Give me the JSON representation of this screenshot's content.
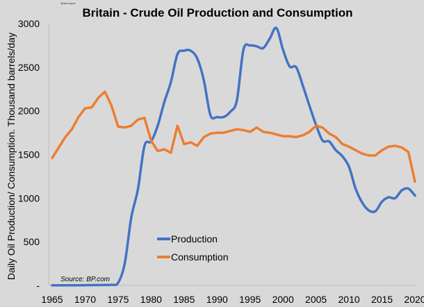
{
  "watermark": "@ideorogue",
  "chart_data": {
    "type": "line",
    "title": "Britain - Crude Oil Production and Consumption",
    "xlabel": "",
    "ylabel": "Daily Oil Production/ Consumption. Thousand barrels/day",
    "source": "Source: BP.com",
    "xlim": [
      1965,
      2020
    ],
    "ylim": [
      0,
      3000
    ],
    "x_ticks": [
      "1965",
      "1970",
      "1975",
      "1980",
      "1985",
      "1990",
      "1995",
      "2000",
      "2005",
      "2010",
      "2015",
      "2020"
    ],
    "y_ticks": [
      "-",
      "500",
      "1000",
      "1500",
      "2000",
      "2500",
      "3000"
    ],
    "grid": false,
    "legend_position": "bottom-center",
    "x": [
      1965,
      1966,
      1967,
      1968,
      1969,
      1970,
      1971,
      1972,
      1973,
      1974,
      1975,
      1976,
      1977,
      1978,
      1979,
      1980,
      1981,
      1982,
      1983,
      1984,
      1985,
      1986,
      1987,
      1988,
      1989,
      1990,
      1991,
      1992,
      1993,
      1994,
      1995,
      1996,
      1997,
      1998,
      1999,
      2000,
      2001,
      2002,
      2003,
      2004,
      2005,
      2006,
      2007,
      2008,
      2009,
      2010,
      2011,
      2012,
      2013,
      2014,
      2015,
      2016,
      2017,
      2018,
      2019,
      2020
    ],
    "series": [
      {
        "name": "Production",
        "color": "#4472c4",
        "smooth": true,
        "values": [
          2,
          2,
          2,
          2,
          2,
          3,
          4,
          5,
          6,
          8,
          30,
          250,
          780,
          1100,
          1600,
          1650,
          1830,
          2100,
          2330,
          2650,
          2690,
          2690,
          2600,
          2350,
          1950,
          1930,
          1930,
          1990,
          2120,
          2700,
          2750,
          2740,
          2720,
          2830,
          2950,
          2700,
          2510,
          2500,
          2290,
          2060,
          1840,
          1660,
          1650,
          1550,
          1480,
          1360,
          1110,
          950,
          860,
          850,
          960,
          1010,
          1000,
          1090,
          1110,
          1030
        ]
      },
      {
        "name": "Consumption",
        "color": "#ed7d31",
        "smooth": false,
        "values": [
          1460,
          1580,
          1700,
          1790,
          1930,
          2030,
          2040,
          2150,
          2220,
          2060,
          1820,
          1810,
          1830,
          1900,
          1920,
          1660,
          1540,
          1560,
          1520,
          1830,
          1620,
          1640,
          1600,
          1700,
          1740,
          1750,
          1750,
          1770,
          1790,
          1780,
          1760,
          1810,
          1760,
          1750,
          1730,
          1710,
          1710,
          1700,
          1720,
          1760,
          1830,
          1810,
          1740,
          1700,
          1620,
          1590,
          1550,
          1510,
          1490,
          1490,
          1550,
          1590,
          1600,
          1580,
          1530,
          1190
        ]
      }
    ]
  }
}
